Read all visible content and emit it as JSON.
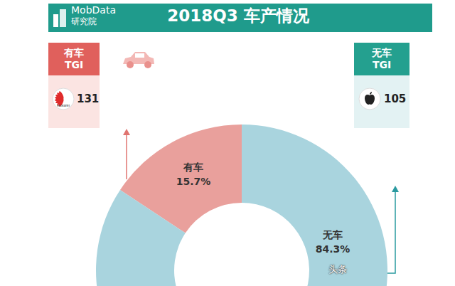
{
  "header": {
    "brand": "MobData",
    "brand_sub": "研究院",
    "title": "2018Q3 车产情况"
  },
  "panels": [
    {
      "title": "有车",
      "subtitle": "TGI",
      "brand": "HUAWEI",
      "value": 131
    },
    {
      "title": "无车",
      "subtitle": "TGI",
      "value": 105
    }
  ],
  "chart_data": {
    "type": "pie",
    "categories": [
      "有车",
      "无车"
    ],
    "values": [
      15.7,
      84.3
    ],
    "value_labels": [
      "15.7%",
      "84.3%"
    ],
    "colors": [
      "#e9a09c",
      "#a9d4de"
    ],
    "data_labels": true
  },
  "watermark": "头条"
}
